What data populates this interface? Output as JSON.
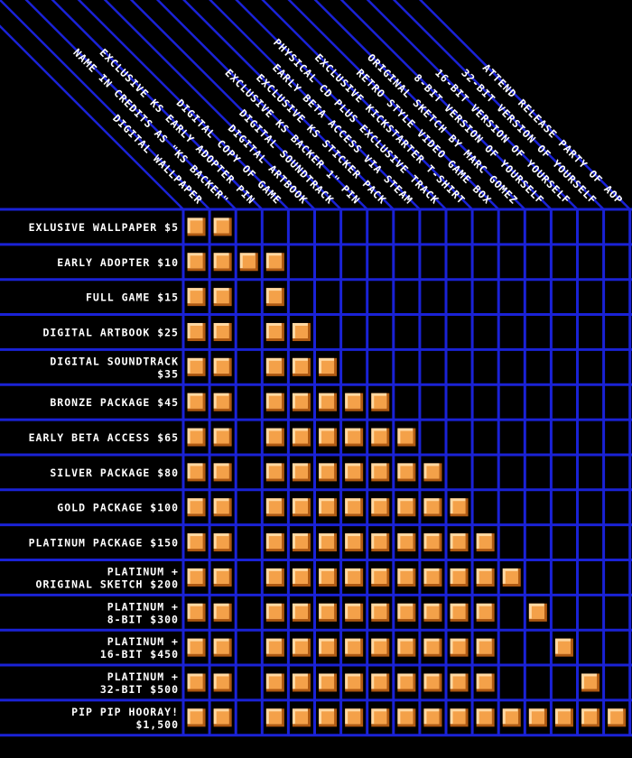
{
  "chart_data": {
    "type": "table",
    "title": "",
    "colors": {
      "background": "#000000",
      "grid": "#1a22d6",
      "text": "#ffffff",
      "marker_fill": "#f4a149",
      "marker_highlight": "#ffd9a3",
      "marker_shadow": "#b05a12"
    },
    "columns": [
      "DIGITAL WALLPAPER",
      "NAME IN CREDITS AS \"KS BACKER\"",
      "EXCLUSIVE KS EARLY ADOPTER PIN",
      "DIGITAL COPY OF GAME",
      "DIGITAL ARTBOOK",
      "DIGITAL SOUNDTRACK",
      "EXCLUSIVE KS BACKER 1\" PIN",
      "EXCLUSIVE KS STICKER PACK",
      "EARLY BETA ACCESS VIA STEAM",
      "PHYSICAL CD PLUS EXCLUSIVE TRACK",
      "EXCLUSIVE KICKSTARTER T-SHIRT",
      "RETRO STYLE VIDEO GAME BOX",
      "ORIGINAL SKETCH BY MARC GOMEZ",
      "8-BIT VERSION OF YOURSELF",
      "16-BIT VERSION OF YOURSELF",
      "32-BIT VERSION OF YOURSELF",
      "ATTEND RELEASE PARTY OF AOP"
    ],
    "rows": [
      {
        "lines": [
          "EXLUSIVE WALLPAPER $5"
        ],
        "included": [
          0,
          1
        ]
      },
      {
        "lines": [
          "EARLY ADOPTER $10"
        ],
        "included": [
          0,
          1,
          2,
          3
        ]
      },
      {
        "lines": [
          "FULL GAME $15"
        ],
        "included": [
          0,
          1,
          3
        ]
      },
      {
        "lines": [
          "DIGITAL ARTBOOK $25"
        ],
        "included": [
          0,
          1,
          3,
          4
        ]
      },
      {
        "lines": [
          "DIGITAL SOUNDTRACK",
          "$35"
        ],
        "included": [
          0,
          1,
          3,
          4,
          5
        ]
      },
      {
        "lines": [
          "BRONZE PACKAGE $45"
        ],
        "included": [
          0,
          1,
          3,
          4,
          5,
          6,
          7
        ]
      },
      {
        "lines": [
          "EARLY BETA ACCESS $65"
        ],
        "included": [
          0,
          1,
          3,
          4,
          5,
          6,
          7,
          8
        ]
      },
      {
        "lines": [
          "SILVER PACKAGE $80"
        ],
        "included": [
          0,
          1,
          3,
          4,
          5,
          6,
          7,
          8,
          9
        ]
      },
      {
        "lines": [
          "GOLD PACKAGE $100"
        ],
        "included": [
          0,
          1,
          3,
          4,
          5,
          6,
          7,
          8,
          9,
          10
        ]
      },
      {
        "lines": [
          "PLATINUM PACKAGE $150"
        ],
        "included": [
          0,
          1,
          3,
          4,
          5,
          6,
          7,
          8,
          9,
          10,
          11
        ]
      },
      {
        "lines": [
          "PLATINUM +",
          "ORIGINAL SKETCH $200"
        ],
        "included": [
          0,
          1,
          3,
          4,
          5,
          6,
          7,
          8,
          9,
          10,
          11,
          12
        ]
      },
      {
        "lines": [
          "PLATINUM +",
          "8-BIT $300"
        ],
        "included": [
          0,
          1,
          3,
          4,
          5,
          6,
          7,
          8,
          9,
          10,
          11,
          13
        ]
      },
      {
        "lines": [
          "PLATINUM +",
          "16-BIT $450"
        ],
        "included": [
          0,
          1,
          3,
          4,
          5,
          6,
          7,
          8,
          9,
          10,
          11,
          14
        ]
      },
      {
        "lines": [
          "PLATINUM +",
          "32-BIT $500"
        ],
        "included": [
          0,
          1,
          3,
          4,
          5,
          6,
          7,
          8,
          9,
          10,
          11,
          15
        ]
      },
      {
        "lines": [
          "PIP PIP HOORAY!",
          "$1,500"
        ],
        "included": [
          0,
          1,
          3,
          4,
          5,
          6,
          7,
          8,
          9,
          10,
          11,
          12,
          13,
          14,
          15,
          16
        ]
      }
    ]
  }
}
